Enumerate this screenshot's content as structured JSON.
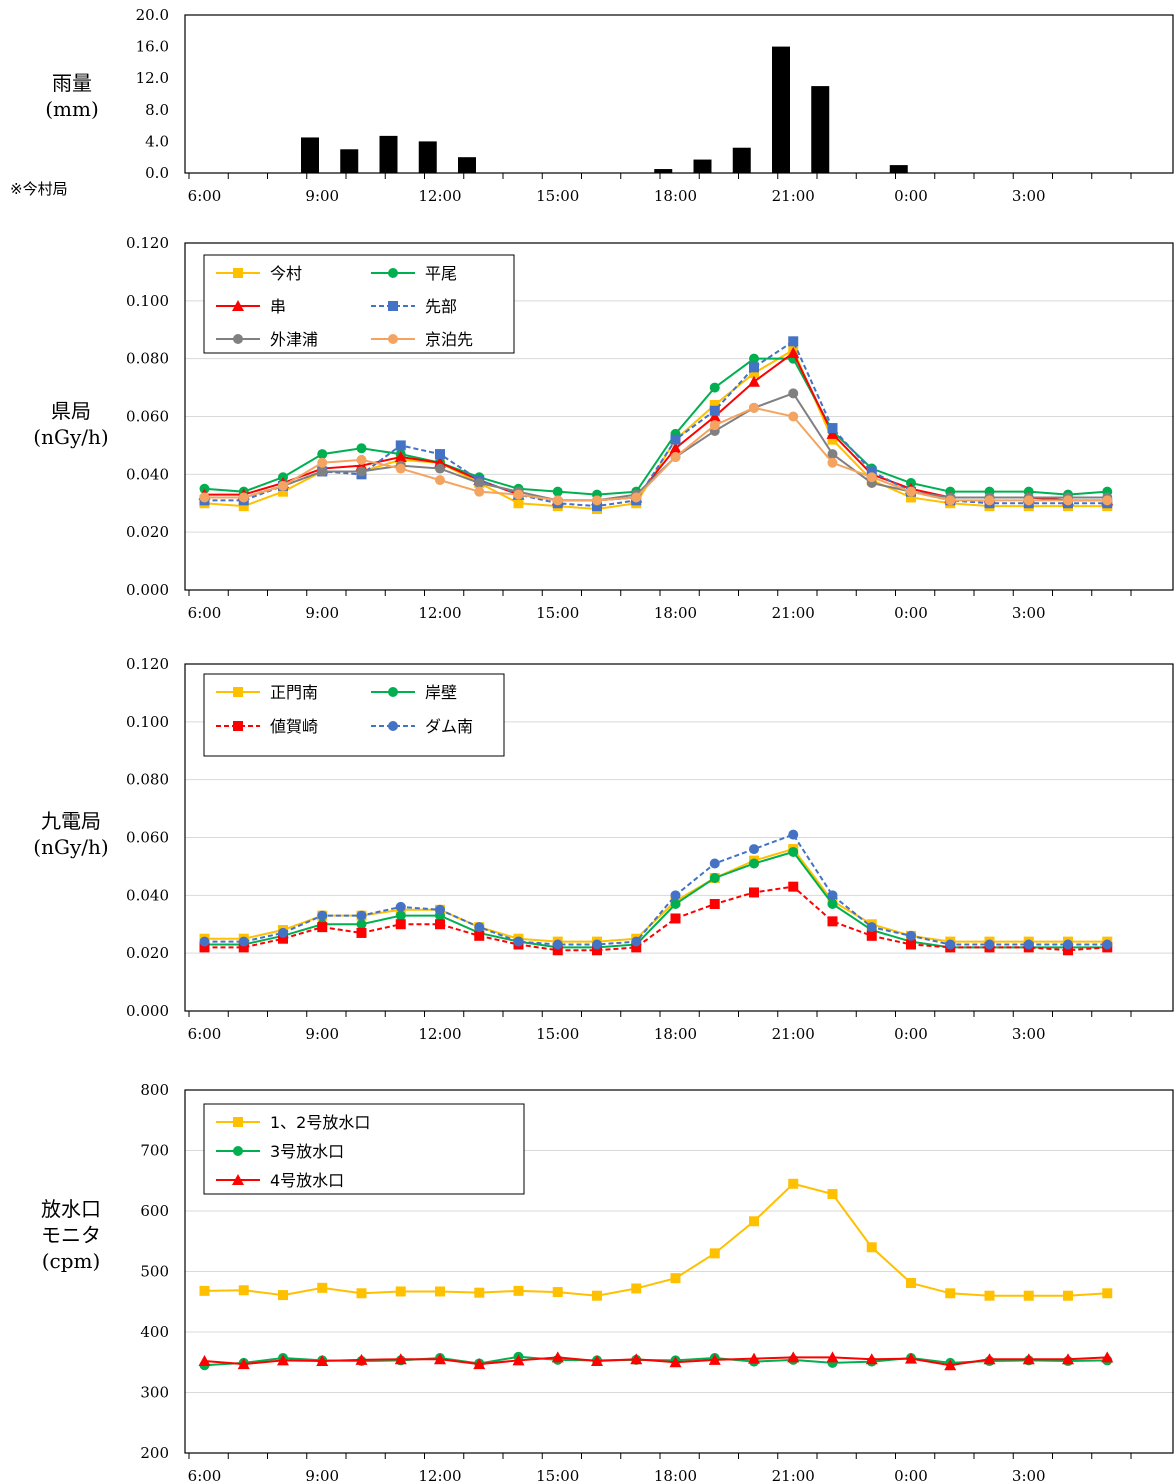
{
  "labels": {
    "rain": "雨量\n(mm)",
    "rain_note": "※今村局",
    "pref": "県局\n(nGy/h)",
    "kyuden": "九電局\n(nGy/h)",
    "outlet": "放水口\nモニタ\n(cpm)"
  },
  "x_tick_labels": [
    "6:00",
    "9:00",
    "12:00",
    "15:00",
    "18:00",
    "21:00",
    "0:00",
    "3:00"
  ],
  "chart_data": [
    {
      "id": "rain",
      "type": "bar",
      "title": "",
      "xlabel": "",
      "ylabel": "雨量(mm)",
      "ylim": [
        0,
        20
      ],
      "yticks": [
        "0.0",
        "4.0",
        "8.0",
        "12.0",
        "16.0",
        "20.0"
      ],
      "grid": false,
      "color": "#000000",
      "values": [
        0,
        0,
        4.5,
        3.0,
        4.7,
        4.0,
        2.0,
        0,
        0,
        0,
        0,
        0.5,
        1.7,
        3.2,
        16.0,
        11.0,
        0,
        1.0,
        0,
        0,
        0,
        0,
        0,
        0
      ]
    },
    {
      "id": "pref",
      "type": "line",
      "title": "",
      "xlabel": "",
      "ylabel": "県局(nGy/h)",
      "ylim": [
        0,
        0.12
      ],
      "yticks": [
        "0.000",
        "0.020",
        "0.040",
        "0.060",
        "0.080",
        "0.100",
        "0.120"
      ],
      "grid": true,
      "legend": "top-left",
      "legend_cols": 2,
      "series": [
        {
          "name": "今村",
          "color": "#FFC000",
          "marker": "square",
          "dashed": false,
          "values": [
            0.03,
            0.029,
            0.034,
            0.041,
            0.041,
            0.045,
            0.044,
            0.037,
            0.03,
            0.029,
            0.028,
            0.03,
            0.052,
            0.064,
            0.075,
            0.083,
            0.052,
            0.038,
            0.032,
            0.03,
            0.029,
            0.029,
            0.029,
            0.029
          ]
        },
        {
          "name": "平尾",
          "color": "#00B050",
          "marker": "circle",
          "dashed": false,
          "values": [
            0.035,
            0.034,
            0.039,
            0.047,
            0.049,
            0.047,
            0.044,
            0.039,
            0.035,
            0.034,
            0.033,
            0.034,
            0.054,
            0.07,
            0.08,
            0.08,
            0.055,
            0.042,
            0.037,
            0.034,
            0.034,
            0.034,
            0.033,
            0.034
          ]
        },
        {
          "name": "串",
          "color": "#FF0000",
          "marker": "triangle",
          "dashed": false,
          "values": [
            0.033,
            0.033,
            0.037,
            0.042,
            0.043,
            0.046,
            0.044,
            0.038,
            0.033,
            0.031,
            0.031,
            0.032,
            0.049,
            0.06,
            0.072,
            0.082,
            0.054,
            0.04,
            0.035,
            0.032,
            0.032,
            0.032,
            0.031,
            0.031
          ]
        },
        {
          "name": "先部",
          "color": "#4472C4",
          "marker": "square",
          "dashed": true,
          "values": [
            0.031,
            0.031,
            0.036,
            0.041,
            0.04,
            0.05,
            0.047,
            0.038,
            0.033,
            0.03,
            0.029,
            0.031,
            0.052,
            0.062,
            0.077,
            0.086,
            0.056,
            0.041,
            0.034,
            0.031,
            0.03,
            0.03,
            0.03,
            0.03
          ]
        },
        {
          "name": "外津浦",
          "color": "#808080",
          "marker": "circle",
          "dashed": false,
          "values": [
            0.032,
            0.032,
            0.036,
            0.041,
            0.041,
            0.043,
            0.042,
            0.037,
            0.034,
            0.031,
            0.031,
            0.033,
            0.046,
            0.055,
            0.063,
            0.068,
            0.047,
            0.037,
            0.034,
            0.032,
            0.032,
            0.032,
            0.032,
            0.032
          ]
        },
        {
          "name": "京泊先",
          "color": "#F4A460",
          "marker": "circle",
          "dashed": false,
          "values": [
            0.032,
            0.032,
            0.036,
            0.044,
            0.045,
            0.042,
            0.038,
            0.034,
            0.033,
            0.031,
            0.031,
            0.032,
            0.046,
            0.057,
            0.063,
            0.06,
            0.044,
            0.039,
            0.034,
            0.031,
            0.031,
            0.031,
            0.031,
            0.031
          ]
        }
      ]
    },
    {
      "id": "kyuden",
      "type": "line",
      "title": "",
      "xlabel": "",
      "ylabel": "九電局(nGy/h)",
      "ylim": [
        0,
        0.12
      ],
      "yticks": [
        "0.000",
        "0.020",
        "0.040",
        "0.060",
        "0.080",
        "0.100",
        "0.120"
      ],
      "grid": true,
      "legend": "top-left",
      "legend_cols": 2,
      "series": [
        {
          "name": "正門南",
          "color": "#FFC000",
          "marker": "square",
          "dashed": false,
          "values": [
            0.025,
            0.025,
            0.028,
            0.033,
            0.033,
            0.035,
            0.035,
            0.029,
            0.025,
            0.024,
            0.024,
            0.025,
            0.038,
            0.046,
            0.052,
            0.056,
            0.038,
            0.03,
            0.026,
            0.024,
            0.024,
            0.024,
            0.024,
            0.024
          ]
        },
        {
          "name": "岸壁",
          "color": "#00B050",
          "marker": "circle",
          "dashed": false,
          "values": [
            0.023,
            0.023,
            0.026,
            0.03,
            0.03,
            0.033,
            0.033,
            0.027,
            0.024,
            0.022,
            0.022,
            0.023,
            0.037,
            0.046,
            0.051,
            0.055,
            0.037,
            0.028,
            0.024,
            0.022,
            0.022,
            0.022,
            0.022,
            0.022
          ]
        },
        {
          "name": "値賀崎",
          "color": "#FF0000",
          "marker": "square",
          "dashed": true,
          "values": [
            0.022,
            0.022,
            0.025,
            0.029,
            0.027,
            0.03,
            0.03,
            0.026,
            0.023,
            0.021,
            0.021,
            0.022,
            0.032,
            0.037,
            0.041,
            0.043,
            0.031,
            0.026,
            0.023,
            0.022,
            0.022,
            0.022,
            0.021,
            0.022
          ]
        },
        {
          "name": "ダム南",
          "color": "#4472C4",
          "marker": "circle",
          "dashed": true,
          "values": [
            0.024,
            0.024,
            0.027,
            0.033,
            0.033,
            0.036,
            0.035,
            0.029,
            0.024,
            0.023,
            0.023,
            0.024,
            0.04,
            0.051,
            0.056,
            0.061,
            0.04,
            0.029,
            0.026,
            0.023,
            0.023,
            0.023,
            0.023,
            0.023
          ]
        }
      ]
    },
    {
      "id": "outlet",
      "type": "line",
      "title": "",
      "xlabel": "",
      "ylabel": "放水口モニタ(cpm)",
      "ylim": [
        200,
        800
      ],
      "yticks": [
        "200",
        "300",
        "400",
        "500",
        "600",
        "700",
        "800"
      ],
      "grid": true,
      "legend": "top-left",
      "legend_cols": 1,
      "series": [
        {
          "name": "1、2号放水口",
          "color": "#FFC000",
          "marker": "square",
          "dashed": false,
          "values": [
            468,
            469,
            461,
            473,
            464,
            467,
            467,
            465,
            468,
            466,
            460,
            472,
            489,
            530,
            583,
            645,
            628,
            540,
            481,
            464,
            460,
            460,
            460,
            464
          ]
        },
        {
          "name": "3号放水口",
          "color": "#00B050",
          "marker": "circle",
          "dashed": false,
          "values": [
            345,
            349,
            357,
            353,
            352,
            353,
            357,
            348,
            359,
            354,
            353,
            354,
            353,
            357,
            351,
            354,
            349,
            351,
            357,
            349,
            352,
            353,
            352,
            353
          ]
        },
        {
          "name": "4号放水口",
          "color": "#FF0000",
          "marker": "triangle",
          "dashed": false,
          "values": [
            352,
            347,
            353,
            352,
            354,
            355,
            355,
            347,
            353,
            358,
            352,
            355,
            350,
            354,
            356,
            358,
            358,
            355,
            356,
            345,
            355,
            355,
            355,
            358
          ]
        }
      ]
    }
  ]
}
